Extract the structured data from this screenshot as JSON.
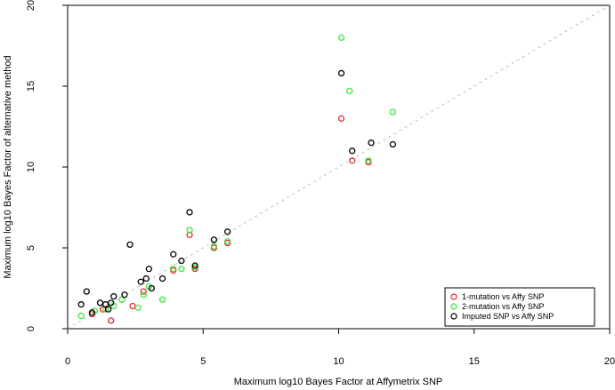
{
  "chart_data": {
    "type": "scatter",
    "title": "",
    "xlabel": "Maximum log10 Bayes Factor at Affymetrix SNP",
    "ylabel": "Maximum log10 Bayes Factor of alternative method",
    "xlim": [
      0,
      20
    ],
    "ylim": [
      0,
      20
    ],
    "xticks": [
      "0",
      "5",
      "10",
      "15",
      "20"
    ],
    "yticks": [
      "0",
      "5",
      "10",
      "15",
      "20"
    ],
    "reference_line": "y = x",
    "legend_position": "bottom-right",
    "series": [
      {
        "name": "1-mutation vs Affy SNP",
        "color": "#e8262a",
        "points": [
          [
            0.9,
            0.9
          ],
          [
            1.3,
            1.2
          ],
          [
            1.6,
            0.5
          ],
          [
            2.4,
            1.4
          ],
          [
            2.8,
            2.3
          ],
          [
            3.9,
            3.6
          ],
          [
            4.5,
            5.8
          ],
          [
            4.7,
            3.7
          ],
          [
            5.4,
            5.0
          ],
          [
            5.9,
            5.3
          ],
          [
            10.1,
            13.0
          ],
          [
            10.5,
            10.4
          ],
          [
            11.1,
            10.3
          ]
        ]
      },
      {
        "name": "2-mutation vs Affy SNP",
        "color": "#39e639",
        "points": [
          [
            0.5,
            0.8
          ],
          [
            1.0,
            1.1
          ],
          [
            1.4,
            1.2
          ],
          [
            1.7,
            1.4
          ],
          [
            2.0,
            1.8
          ],
          [
            2.6,
            1.3
          ],
          [
            2.8,
            2.1
          ],
          [
            3.0,
            2.6
          ],
          [
            3.5,
            1.8
          ],
          [
            3.9,
            3.7
          ],
          [
            4.2,
            3.7
          ],
          [
            4.5,
            6.1
          ],
          [
            4.7,
            3.8
          ],
          [
            5.4,
            5.1
          ],
          [
            5.9,
            5.4
          ],
          [
            10.1,
            18.0
          ],
          [
            10.4,
            14.7
          ],
          [
            11.1,
            10.4
          ],
          [
            12.0,
            13.4
          ]
        ]
      },
      {
        "name": "Imputed SNP vs Affy SNP",
        "color": "#000000",
        "points": [
          [
            0.5,
            1.5
          ],
          [
            0.7,
            2.3
          ],
          [
            0.9,
            1.0
          ],
          [
            1.2,
            1.6
          ],
          [
            1.4,
            1.5
          ],
          [
            1.5,
            1.2
          ],
          [
            1.6,
            1.6
          ],
          [
            1.7,
            2.0
          ],
          [
            2.1,
            2.1
          ],
          [
            2.3,
            5.2
          ],
          [
            2.7,
            2.9
          ],
          [
            2.9,
            3.1
          ],
          [
            3.0,
            3.7
          ],
          [
            3.1,
            2.5
          ],
          [
            3.5,
            3.1
          ],
          [
            3.9,
            4.6
          ],
          [
            4.2,
            4.2
          ],
          [
            4.5,
            7.2
          ],
          [
            4.7,
            3.9
          ],
          [
            5.4,
            5.5
          ],
          [
            5.9,
            6.0
          ],
          [
            10.1,
            15.8
          ],
          [
            10.5,
            11.0
          ],
          [
            11.2,
            11.5
          ],
          [
            12.0,
            11.4
          ]
        ]
      }
    ]
  }
}
